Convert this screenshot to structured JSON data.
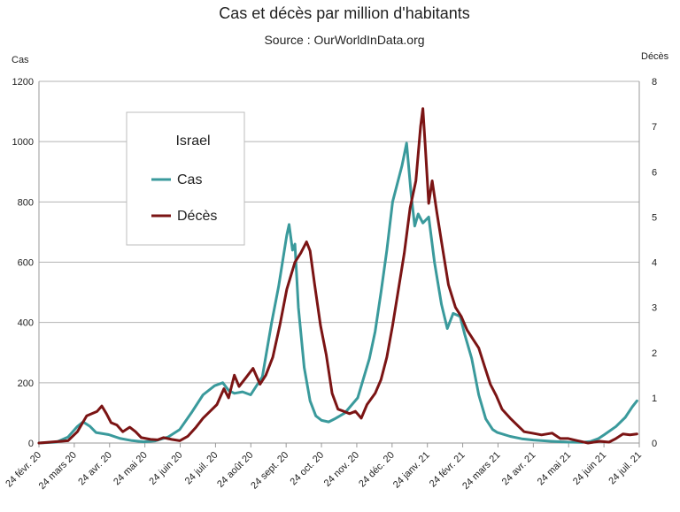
{
  "colors": {
    "cases": "#3a9a9c",
    "deaths": "#7b1414",
    "grid": "#b3b3b3",
    "axis": "#999999"
  },
  "chart_data": {
    "type": "line",
    "title": "Cas et décès par million d'habitants",
    "subtitle": "Source : OurWorldInData.org",
    "y_left_label": "Cas",
    "y_right_label": "Décès",
    "y_left_range": [
      0,
      1200
    ],
    "y_right_range": [
      0,
      8
    ],
    "y_left_ticks": [
      0,
      200,
      400,
      600,
      800,
      1000,
      1200
    ],
    "y_right_ticks": [
      0,
      1,
      2,
      3,
      4,
      5,
      6,
      7,
      8
    ],
    "x_range": [
      "2020-02-24",
      "2021-07-24"
    ],
    "x_tick_labels": [
      "24 févr. 20",
      "24 mars 20",
      "24 avr. 20",
      "24 mai 20",
      "24 juin 20",
      "24 juil. 20",
      "24 août 20",
      "24 sept. 20",
      "24 oct. 20",
      "24 nov. 20",
      "24 déc. 20",
      "24 janv. 21",
      "24 févr. 21",
      "24 mars 21",
      "24 avr. 21",
      "24 mai 21",
      "24 juin 21",
      "24 juil. 21"
    ],
    "grid": "horizontal",
    "legend": {
      "title": "Israel",
      "position": "top-left",
      "entries": [
        "Cas",
        "Décès"
      ]
    },
    "series": [
      {
        "name": "Cas",
        "axis": "left",
        "points": [
          [
            "2020-02-24",
            0
          ],
          [
            "2020-03-10",
            3
          ],
          [
            "2020-03-20",
            20
          ],
          [
            "2020-03-28",
            55
          ],
          [
            "2020-04-02",
            70
          ],
          [
            "2020-04-08",
            55
          ],
          [
            "2020-04-13",
            35
          ],
          [
            "2020-04-24",
            28
          ],
          [
            "2020-05-04",
            15
          ],
          [
            "2020-05-14",
            8
          ],
          [
            "2020-05-24",
            4
          ],
          [
            "2020-06-03",
            7
          ],
          [
            "2020-06-14",
            20
          ],
          [
            "2020-06-24",
            45
          ],
          [
            "2020-07-04",
            100
          ],
          [
            "2020-07-14",
            160
          ],
          [
            "2020-07-24",
            190
          ],
          [
            "2020-07-31",
            200
          ],
          [
            "2020-08-05",
            175
          ],
          [
            "2020-08-10",
            165
          ],
          [
            "2020-08-17",
            170
          ],
          [
            "2020-08-24",
            160
          ],
          [
            "2020-09-03",
            220
          ],
          [
            "2020-09-11",
            400
          ],
          [
            "2020-09-17",
            520
          ],
          [
            "2020-09-24",
            690
          ],
          [
            "2020-09-26",
            725
          ],
          [
            "2020-09-29",
            640
          ],
          [
            "2020-10-01",
            660
          ],
          [
            "2020-10-04",
            450
          ],
          [
            "2020-10-09",
            250
          ],
          [
            "2020-10-14",
            140
          ],
          [
            "2020-10-19",
            90
          ],
          [
            "2020-10-24",
            75
          ],
          [
            "2020-10-30",
            70
          ],
          [
            "2020-11-05",
            82
          ],
          [
            "2020-11-13",
            100
          ],
          [
            "2020-11-24",
            150
          ],
          [
            "2020-12-04",
            280
          ],
          [
            "2020-12-09",
            370
          ],
          [
            "2020-12-14",
            500
          ],
          [
            "2020-12-19",
            640
          ],
          [
            "2020-12-24",
            800
          ],
          [
            "2021-01-01",
            920
          ],
          [
            "2021-01-05",
            995
          ],
          [
            "2021-01-09",
            820
          ],
          [
            "2021-01-12",
            720
          ],
          [
            "2021-01-15",
            760
          ],
          [
            "2021-01-19",
            730
          ],
          [
            "2021-01-24",
            750
          ],
          [
            "2021-01-29",
            600
          ],
          [
            "2021-02-04",
            460
          ],
          [
            "2021-02-09",
            380
          ],
          [
            "2021-02-14",
            430
          ],
          [
            "2021-02-20",
            420
          ],
          [
            "2021-02-24",
            360
          ],
          [
            "2021-03-02",
            280
          ],
          [
            "2021-03-08",
            160
          ],
          [
            "2021-03-14",
            80
          ],
          [
            "2021-03-20",
            45
          ],
          [
            "2021-03-24",
            35
          ],
          [
            "2021-04-04",
            22
          ],
          [
            "2021-04-14",
            14
          ],
          [
            "2021-04-24",
            10
          ],
          [
            "2021-05-09",
            6
          ],
          [
            "2021-05-24",
            3
          ],
          [
            "2021-06-05",
            2
          ],
          [
            "2021-06-12",
            5
          ],
          [
            "2021-06-19",
            15
          ],
          [
            "2021-06-24",
            28
          ],
          [
            "2021-07-04",
            55
          ],
          [
            "2021-07-12",
            85
          ],
          [
            "2021-07-18",
            120
          ],
          [
            "2021-07-22",
            140
          ]
        ]
      },
      {
        "name": "Décès",
        "axis": "right",
        "points": [
          [
            "2020-02-24",
            0
          ],
          [
            "2020-03-20",
            0.05
          ],
          [
            "2020-03-28",
            0.25
          ],
          [
            "2020-04-05",
            0.6
          ],
          [
            "2020-04-14",
            0.7
          ],
          [
            "2020-04-18",
            0.82
          ],
          [
            "2020-04-22",
            0.65
          ],
          [
            "2020-04-26",
            0.45
          ],
          [
            "2020-05-01",
            0.4
          ],
          [
            "2020-05-06",
            0.25
          ],
          [
            "2020-05-12",
            0.35
          ],
          [
            "2020-05-17",
            0.25
          ],
          [
            "2020-05-22",
            0.12
          ],
          [
            "2020-05-30",
            0.08
          ],
          [
            "2020-06-05",
            0.07
          ],
          [
            "2020-06-10",
            0.12
          ],
          [
            "2020-06-17",
            0.08
          ],
          [
            "2020-06-24",
            0.05
          ],
          [
            "2020-07-01",
            0.15
          ],
          [
            "2020-07-08",
            0.35
          ],
          [
            "2020-07-14",
            0.55
          ],
          [
            "2020-07-20",
            0.7
          ],
          [
            "2020-07-26",
            0.85
          ],
          [
            "2020-08-01",
            1.2
          ],
          [
            "2020-08-05",
            1.0
          ],
          [
            "2020-08-10",
            1.5
          ],
          [
            "2020-08-14",
            1.25
          ],
          [
            "2020-08-20",
            1.45
          ],
          [
            "2020-08-26",
            1.65
          ],
          [
            "2020-09-01",
            1.3
          ],
          [
            "2020-09-06",
            1.5
          ],
          [
            "2020-09-12",
            1.9
          ],
          [
            "2020-09-18",
            2.6
          ],
          [
            "2020-09-24",
            3.4
          ],
          [
            "2020-10-01",
            4.0
          ],
          [
            "2020-10-06",
            4.2
          ],
          [
            "2020-10-11",
            4.45
          ],
          [
            "2020-10-14",
            4.25
          ],
          [
            "2020-10-18",
            3.5
          ],
          [
            "2020-10-23",
            2.6
          ],
          [
            "2020-10-28",
            1.95
          ],
          [
            "2020-11-02",
            1.1
          ],
          [
            "2020-11-07",
            0.75
          ],
          [
            "2020-11-12",
            0.7
          ],
          [
            "2020-11-17",
            0.65
          ],
          [
            "2020-11-22",
            0.7
          ],
          [
            "2020-11-27",
            0.55
          ],
          [
            "2020-12-02",
            0.85
          ],
          [
            "2020-12-09",
            1.1
          ],
          [
            "2020-12-14",
            1.4
          ],
          [
            "2020-12-19",
            1.9
          ],
          [
            "2020-12-24",
            2.6
          ],
          [
            "2020-12-29",
            3.4
          ],
          [
            "2021-01-03",
            4.2
          ],
          [
            "2021-01-08",
            5.2
          ],
          [
            "2021-01-13",
            5.8
          ],
          [
            "2021-01-17",
            7.0
          ],
          [
            "2021-01-19",
            7.4
          ],
          [
            "2021-01-21",
            6.6
          ],
          [
            "2021-01-24",
            5.3
          ],
          [
            "2021-01-27",
            5.8
          ],
          [
            "2021-01-31",
            5.1
          ],
          [
            "2021-02-05",
            4.3
          ],
          [
            "2021-02-10",
            3.5
          ],
          [
            "2021-02-16",
            3.0
          ],
          [
            "2021-02-21",
            2.8
          ],
          [
            "2021-02-26",
            2.5
          ],
          [
            "2021-03-03",
            2.3
          ],
          [
            "2021-03-08",
            2.1
          ],
          [
            "2021-03-13",
            1.7
          ],
          [
            "2021-03-18",
            1.3
          ],
          [
            "2021-03-23",
            1.05
          ],
          [
            "2021-03-28",
            0.75
          ],
          [
            "2021-04-04",
            0.55
          ],
          [
            "2021-04-10",
            0.4
          ],
          [
            "2021-04-16",
            0.25
          ],
          [
            "2021-04-23",
            0.22
          ],
          [
            "2021-05-01",
            0.18
          ],
          [
            "2021-05-10",
            0.22
          ],
          [
            "2021-05-17",
            0.1
          ],
          [
            "2021-05-24",
            0.1
          ],
          [
            "2021-06-01",
            0.05
          ],
          [
            "2021-06-10",
            0.0
          ],
          [
            "2021-06-20",
            0.04
          ],
          [
            "2021-06-28",
            0.02
          ],
          [
            "2021-07-04",
            0.1
          ],
          [
            "2021-07-10",
            0.2
          ],
          [
            "2021-07-16",
            0.18
          ],
          [
            "2021-07-22",
            0.2
          ]
        ]
      }
    ]
  }
}
